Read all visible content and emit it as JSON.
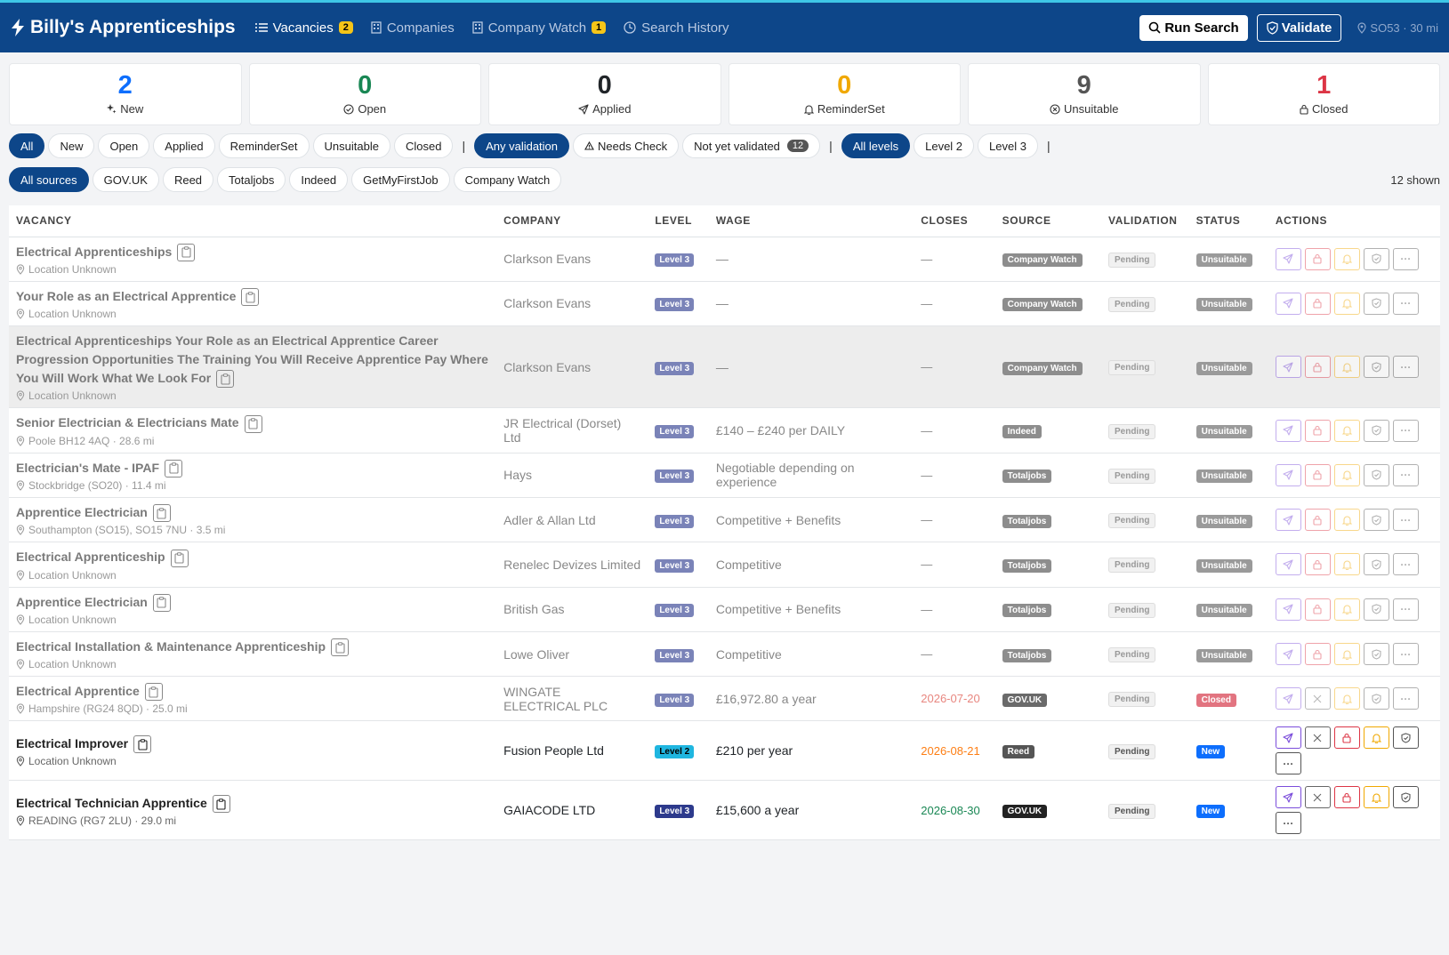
{
  "app": {
    "title": "Billy's Apprenticeships"
  },
  "nav": [
    {
      "label": "Vacancies",
      "badge": "2",
      "icon": "list-icon",
      "active": true
    },
    {
      "label": "Companies",
      "badge": "",
      "icon": "building-icon",
      "active": false
    },
    {
      "label": "Company Watch",
      "badge": "1",
      "icon": "building-icon",
      "active": false
    },
    {
      "label": "Search History",
      "badge": "",
      "icon": "clock-icon",
      "active": false
    }
  ],
  "actions": {
    "run_search": "Run Search",
    "validate": "Validate",
    "location": "SO53 · 30 mi"
  },
  "stats": [
    {
      "value": "2",
      "label": "New",
      "color": "#0d6efd",
      "icon": "sparkle-icon"
    },
    {
      "value": "0",
      "label": "Open",
      "color": "#198754",
      "icon": "check-circle-icon"
    },
    {
      "value": "0",
      "label": "Applied",
      "color": "#212529",
      "icon": "send-icon"
    },
    {
      "value": "0",
      "label": "ReminderSet",
      "color": "#f0a800",
      "icon": "bell-icon"
    },
    {
      "value": "9",
      "label": "Unsuitable",
      "color": "#555555",
      "icon": "x-circle-icon"
    },
    {
      "value": "1",
      "label": "Closed",
      "color": "#dc3545",
      "icon": "lock-icon"
    }
  ],
  "filters": {
    "status": [
      "All",
      "New",
      "Open",
      "Applied",
      "ReminderSet",
      "Unsuitable",
      "Closed"
    ],
    "validation": [
      "Any validation",
      "Needs Check",
      "Not yet validated"
    ],
    "validation_count": "12",
    "levels": [
      "All levels",
      "Level 2",
      "Level 3"
    ],
    "sources": [
      "All sources",
      "GOV.UK",
      "Reed",
      "Totaljobs",
      "Indeed",
      "GetMyFirstJob",
      "Company Watch"
    ],
    "shown": "12 shown"
  },
  "table": {
    "headers": [
      "VACANCY",
      "COMPANY",
      "LEVEL",
      "WAGE",
      "CLOSES",
      "SOURCE",
      "VALIDATION",
      "STATUS",
      "ACTIONS"
    ],
    "rows": [
      {
        "title": "Electrical Apprenticeships",
        "location": "Location Unknown",
        "company": "Clarkson Evans",
        "level": "Level 3",
        "wage": "—",
        "closes": "—",
        "source": "Company Watch",
        "validation": "Pending",
        "status": "Unsuitable",
        "dim": true
      },
      {
        "title": "Your Role as an Electrical Apprentice",
        "location": "Location Unknown",
        "company": "Clarkson Evans",
        "level": "Level 3",
        "wage": "—",
        "closes": "—",
        "source": "Company Watch",
        "validation": "Pending",
        "status": "Unsuitable",
        "dim": true
      },
      {
        "title": "Electrical Apprenticeships Your Role as an Electrical Apprentice Career Progression Opportunities The Training You Will Receive Apprentice Pay Where You Will Work What We Look For",
        "location": "Location Unknown",
        "company": "Clarkson Evans",
        "level": "Level 3",
        "wage": "—",
        "closes": "—",
        "source": "Company Watch",
        "validation": "Pending",
        "status": "Unsuitable",
        "dim": true,
        "highlight": true
      },
      {
        "title": "Senior Electrician & Electricians Mate",
        "location": "Poole BH12 4AQ · 28.6 mi",
        "company": "JR Electrical (Dorset) Ltd",
        "level": "Level 3",
        "wage": "£140 – £240 per DAILY",
        "closes": "—",
        "source": "Indeed",
        "validation": "Pending",
        "status": "Unsuitable",
        "dim": true
      },
      {
        "title": "Electrician's Mate - IPAF",
        "location": "Stockbridge (SO20) · 11.4 mi",
        "company": "Hays",
        "level": "Level 3",
        "wage": "Negotiable depending on experience",
        "closes": "—",
        "source": "Totaljobs",
        "validation": "Pending",
        "status": "Unsuitable",
        "dim": true
      },
      {
        "title": "Apprentice Electrician",
        "location": "Southampton (SO15), SO15 7NU · 3.5 mi",
        "company": "Adler & Allan Ltd",
        "level": "Level 3",
        "wage": "Competitive + Benefits",
        "closes": "—",
        "source": "Totaljobs",
        "validation": "Pending",
        "status": "Unsuitable",
        "dim": true
      },
      {
        "title": "Electrical Apprenticeship",
        "location": "Location Unknown",
        "company": "Renelec Devizes Limited",
        "level": "Level 3",
        "wage": "Competitive",
        "closes": "—",
        "source": "Totaljobs",
        "validation": "Pending",
        "status": "Unsuitable",
        "dim": true
      },
      {
        "title": "Apprentice Electrician",
        "location": "Location Unknown",
        "company": "British Gas",
        "level": "Level 3",
        "wage": "Competitive + Benefits",
        "closes": "—",
        "source": "Totaljobs",
        "validation": "Pending",
        "status": "Unsuitable",
        "dim": true
      },
      {
        "title": "Electrical Installation & Maintenance Apprenticeship",
        "location": "Location Unknown",
        "company": "Lowe Oliver",
        "level": "Level 3",
        "wage": "Competitive",
        "closes": "—",
        "source": "Totaljobs",
        "validation": "Pending",
        "status": "Unsuitable",
        "dim": true
      },
      {
        "title": "Electrical Apprentice",
        "location": "Hampshire (RG24 8QD) · 25.0 mi",
        "company": "WINGATE ELECTRICAL PLC",
        "level": "Level 3",
        "wage": "£16,972.80 a year",
        "closes": "2026-07-20",
        "closes_color": "#e8867f",
        "source": "GOV.UK",
        "validation": "Pending",
        "status": "Closed",
        "dim": true
      },
      {
        "title": "Electrical Improver",
        "location": "Location Unknown",
        "company": "Fusion People Ltd",
        "level": "Level 2",
        "wage": "£210 per year",
        "closes": "2026-08-21",
        "closes_color": "#fd7e14",
        "source": "Reed",
        "validation": "Pending",
        "status": "New",
        "dim": false
      },
      {
        "title": "Electrical Technician Apprentice",
        "location": "READING (RG7 2LU) · 29.0 mi",
        "company": "GAIACODE LTD",
        "level": "Level 3",
        "wage": "£15,600 a year",
        "closes": "2026-08-30",
        "closes_color": "#198754",
        "source": "GOV.UK",
        "validation": "Pending",
        "status": "New",
        "dim": false
      }
    ]
  }
}
